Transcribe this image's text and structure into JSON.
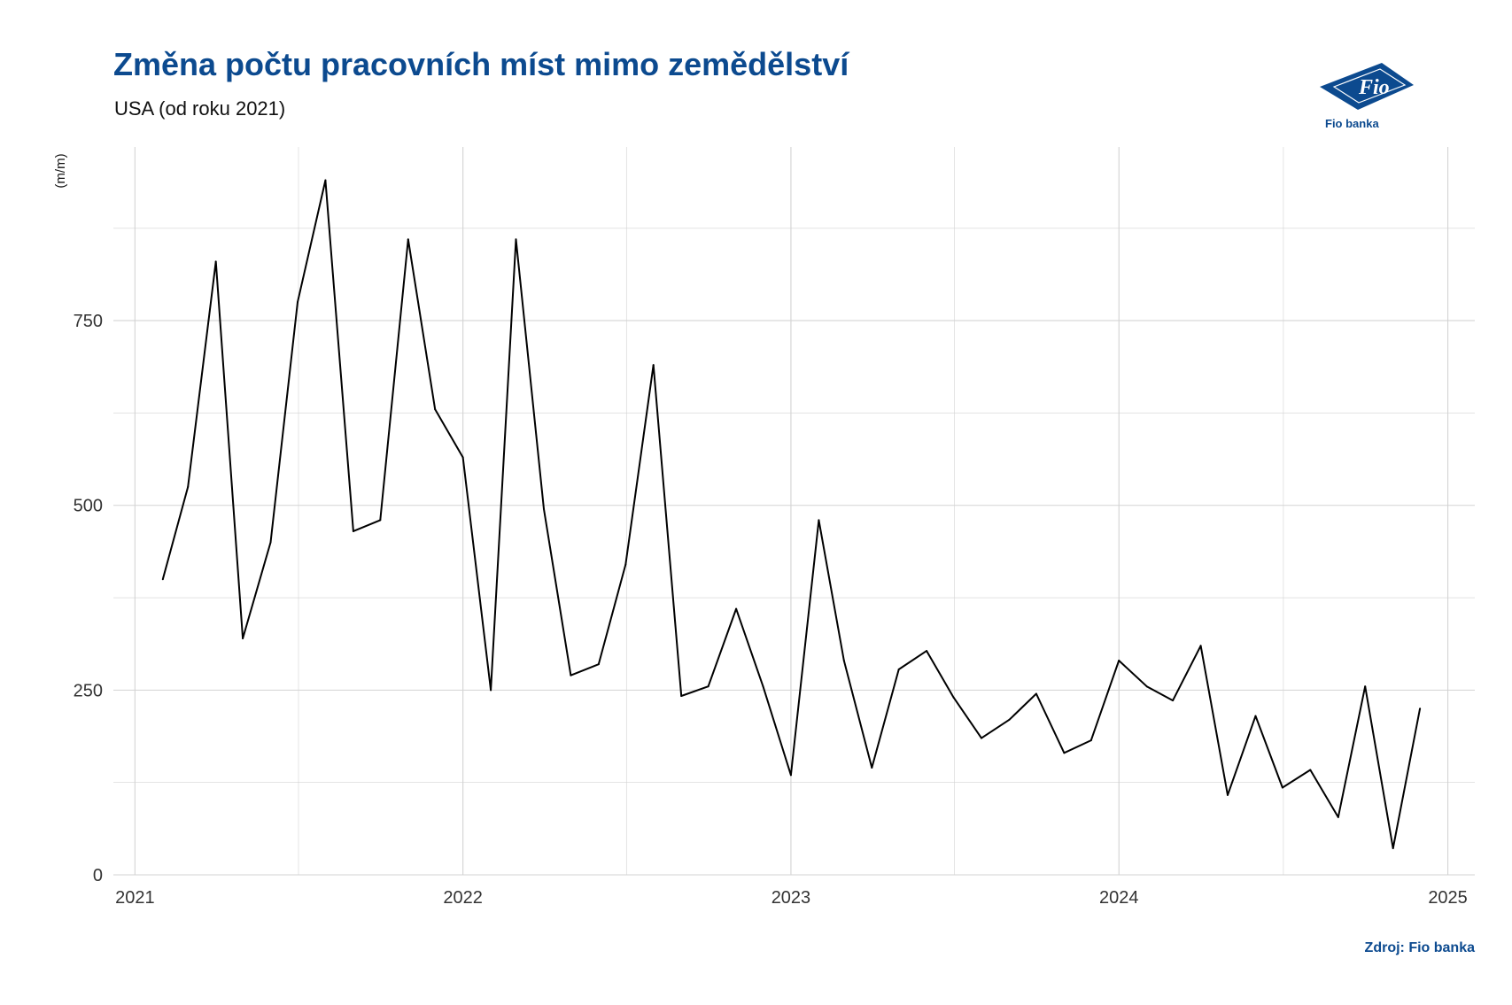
{
  "title": "Změna počtu pracovních míst mimo zemědělství",
  "subtitle": "USA (od roku 2021)",
  "source": "Zdroj: Fio banka",
  "logo": {
    "mark": "Fio",
    "name": "Fio banka",
    "color": "#0c4a8f"
  },
  "colors": {
    "title": "#0c4a8f",
    "line": "#000000",
    "grid": "#d3d3d3"
  },
  "chart_data": {
    "type": "line",
    "title": "Změna počtu pracovních míst mimo zemědělství",
    "subtitle": "USA (od roku 2021)",
    "xlabel": "",
    "ylabel": "(m/m)",
    "grid": true,
    "legend": "none",
    "xlim": [
      "2020-12-08",
      "2025-01-31"
    ],
    "ylim": [
      0,
      985
    ],
    "x_ticks": [
      "2021",
      "2022",
      "2023",
      "2024",
      "2025"
    ],
    "y_ticks": [
      0,
      250,
      500,
      750
    ],
    "series": [
      {
        "x": [
          "2021-02-01",
          "2021-03-01",
          "2021-04-01",
          "2021-05-01",
          "2021-06-01",
          "2021-07-01",
          "2021-08-01",
          "2021-09-01",
          "2021-10-01",
          "2021-11-01",
          "2021-12-01",
          "2022-01-01",
          "2022-02-01",
          "2022-03-01",
          "2022-04-01",
          "2022-05-01",
          "2022-06-01",
          "2022-07-01",
          "2022-08-01",
          "2022-09-01",
          "2022-10-01",
          "2022-11-01",
          "2022-12-01",
          "2023-01-01",
          "2023-02-01",
          "2023-03-01",
          "2023-04-01",
          "2023-05-01",
          "2023-06-01",
          "2023-07-01",
          "2023-08-01",
          "2023-09-01",
          "2023-10-01",
          "2023-11-01",
          "2023-12-01",
          "2024-01-01",
          "2024-02-01",
          "2024-03-01",
          "2024-04-01",
          "2024-05-01",
          "2024-06-01",
          "2024-07-01",
          "2024-08-01",
          "2024-09-01",
          "2024-10-01",
          "2024-11-01",
          "2024-12-01"
        ],
        "values": [
          400,
          525,
          830,
          320,
          450,
          775,
          940,
          465,
          480,
          860,
          630,
          565,
          250,
          860,
          495,
          270,
          285,
          420,
          690,
          242,
          255,
          360,
          255,
          135,
          480,
          290,
          145,
          278,
          303,
          240,
          185,
          210,
          245,
          165,
          182,
          290,
          255,
          236,
          310,
          108,
          215,
          118,
          142,
          78,
          255,
          36,
          225
        ]
      }
    ]
  }
}
